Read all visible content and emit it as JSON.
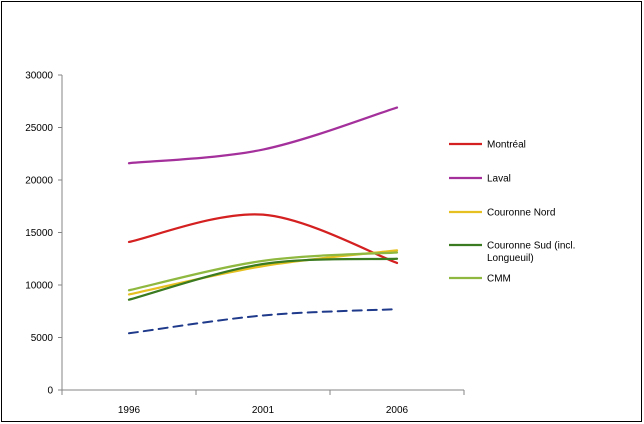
{
  "chart_data": {
    "type": "line",
    "categories": [
      "1996",
      "2001",
      "2006"
    ],
    "ylim": [
      0,
      30000
    ],
    "yticks": [
      "0",
      "5000",
      "10000",
      "15000",
      "20000",
      "25000",
      "30000"
    ],
    "series": [
      {
        "name": "Montréal",
        "values": [
          14100,
          16700,
          12100
        ],
        "color": "#d42020",
        "dash": false
      },
      {
        "name": "Laval",
        "values": [
          21600,
          22900,
          26900
        ],
        "color": "#a4309c",
        "dash": false
      },
      {
        "name": "Couronne Nord",
        "values": [
          9100,
          11800,
          13300
        ],
        "color": "#e6c020",
        "dash": false
      },
      {
        "name": "Couronne Sud (incl. Longueuil)",
        "values": [
          8600,
          12000,
          12500
        ],
        "color": "#3a7a20",
        "dash": false
      },
      {
        "name": "CMM",
        "values": [
          9500,
          12300,
          13100
        ],
        "color": "#8fb840",
        "dash": false
      },
      {
        "name": "",
        "values": [
          5400,
          7100,
          7700
        ],
        "color": "#1f3a8a",
        "dash": true
      }
    ],
    "legend_position": "right",
    "grid": false
  }
}
